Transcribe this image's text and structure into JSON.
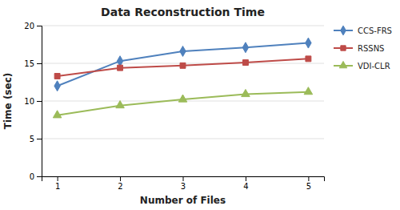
{
  "chart_data": {
    "type": "line",
    "title": "Data Reconstruction Time",
    "xlabel": "Number of Files",
    "ylabel": "Time (sec)",
    "x": [
      1,
      2,
      3,
      4,
      5
    ],
    "series": [
      {
        "name": "CCS-FRS",
        "color": "#4F81BD",
        "marker": "diamond",
        "values": [
          12,
          15.3,
          16.6,
          17.1,
          17.7
        ]
      },
      {
        "name": "RSSNS",
        "color": "#BE4B48",
        "marker": "square",
        "values": [
          13.3,
          14.4,
          14.7,
          15.1,
          15.6
        ]
      },
      {
        "name": "VDI-CLR",
        "color": "#9BBB59",
        "marker": "triangle",
        "values": [
          8.1,
          9.4,
          10.2,
          10.9,
          11.2
        ]
      }
    ],
    "xlim": [
      0.75,
      5.25
    ],
    "xticks": [
      1,
      2,
      3,
      4,
      5
    ],
    "ylim": [
      0,
      20
    ],
    "yticks": [
      0,
      5,
      10,
      15,
      20
    ],
    "grid": "y",
    "legend": "right"
  }
}
